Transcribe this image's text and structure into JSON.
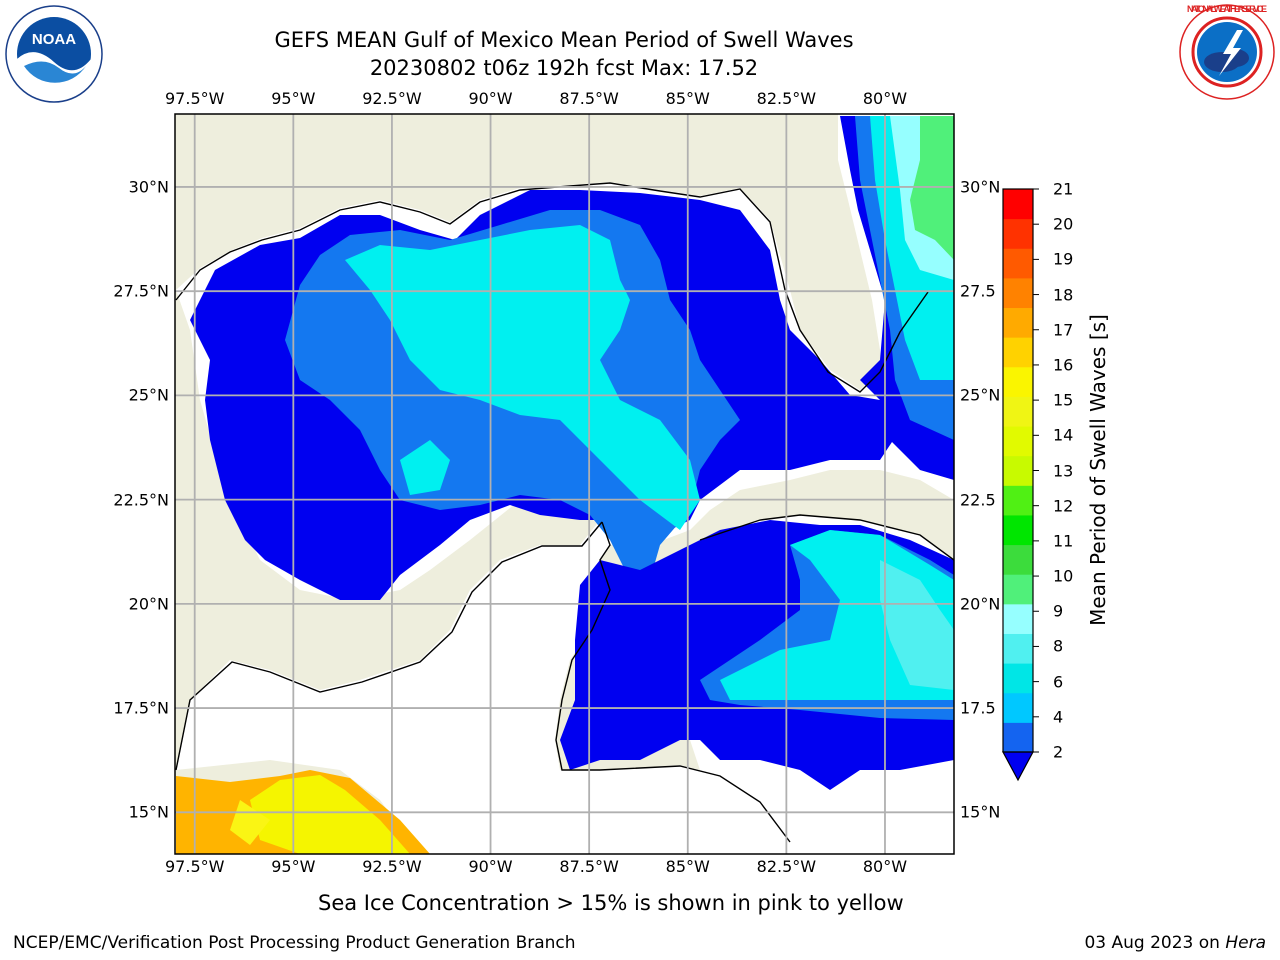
{
  "title": {
    "line1": "GEFS MEAN Gulf of Mexico Mean Period of Swell Waves",
    "line2": "20230802 t06z 192h fcst   Max: 17.52"
  },
  "logos": {
    "noaa": {
      "text": "NOAA",
      "icon": "noaa-logo"
    },
    "nws": {
      "text": "NATIONAL WEATHER SERVICE",
      "icon": "nws-logo"
    }
  },
  "map": {
    "lon_labels": [
      "97.5°W",
      "95°W",
      "92.5°W",
      "90°W",
      "87.5°W",
      "85°W",
      "82.5°W",
      "80°W"
    ],
    "lon_values": [
      -97.5,
      -95,
      -92.5,
      -90,
      -87.5,
      -85,
      -82.5,
      -80
    ],
    "lat_labels_left": [
      "30°N",
      "27.5°N",
      "25°N",
      "22.5°N",
      "20°N",
      "17.5°N",
      "15°N"
    ],
    "lat_labels_right": [
      "30°N",
      "27.5",
      "25°N",
      "22.5",
      "20°N",
      "17.5",
      "15°N"
    ],
    "lat_values": [
      30,
      27.5,
      25,
      22.5,
      20,
      17.5,
      15
    ],
    "extent": {
      "lon_min": -98,
      "lon_max": -78.25,
      "lat_min": 14,
      "lat_max": 31.75
    },
    "colors": {
      "land": "#eeeedd",
      "no_data": "#ffffff",
      "grid": "#b0b0b0",
      "coast": "#000000"
    }
  },
  "colorbar": {
    "label": "Mean Period of Swell Waves [s]",
    "ticks": [
      "2",
      "4",
      "6",
      "8",
      "9",
      "10",
      "11",
      "12",
      "13",
      "14",
      "15",
      "16",
      "17",
      "18",
      "19",
      "20",
      "21"
    ],
    "tick_values": [
      2,
      4,
      6,
      8,
      9,
      10,
      11,
      12,
      13,
      14,
      15,
      16,
      17,
      18,
      19,
      20,
      21
    ],
    "colors": [
      "#1464f0",
      "#00c8ff",
      "#00e6e6",
      "#50f0f0",
      "#96ffff",
      "#50f07a",
      "#3cdc3c",
      "#00e600",
      "#50f014",
      "#c8fa00",
      "#e1fa00",
      "#f0f514",
      "#faf500",
      "#ffd200",
      "#ffaa00",
      "#ff8200",
      "#ff5a00",
      "#ff3200",
      "#ff0000"
    ],
    "extend_color": "#0000f0"
  },
  "bottom_note": "Sea Ice Concentration > 15% is shown in pink to yellow",
  "footer": {
    "left": "NCEP/EMC/Verification Post Processing Product Generation Branch",
    "right_date": "03 Aug 2023 on ",
    "right_host": "Hera"
  }
}
